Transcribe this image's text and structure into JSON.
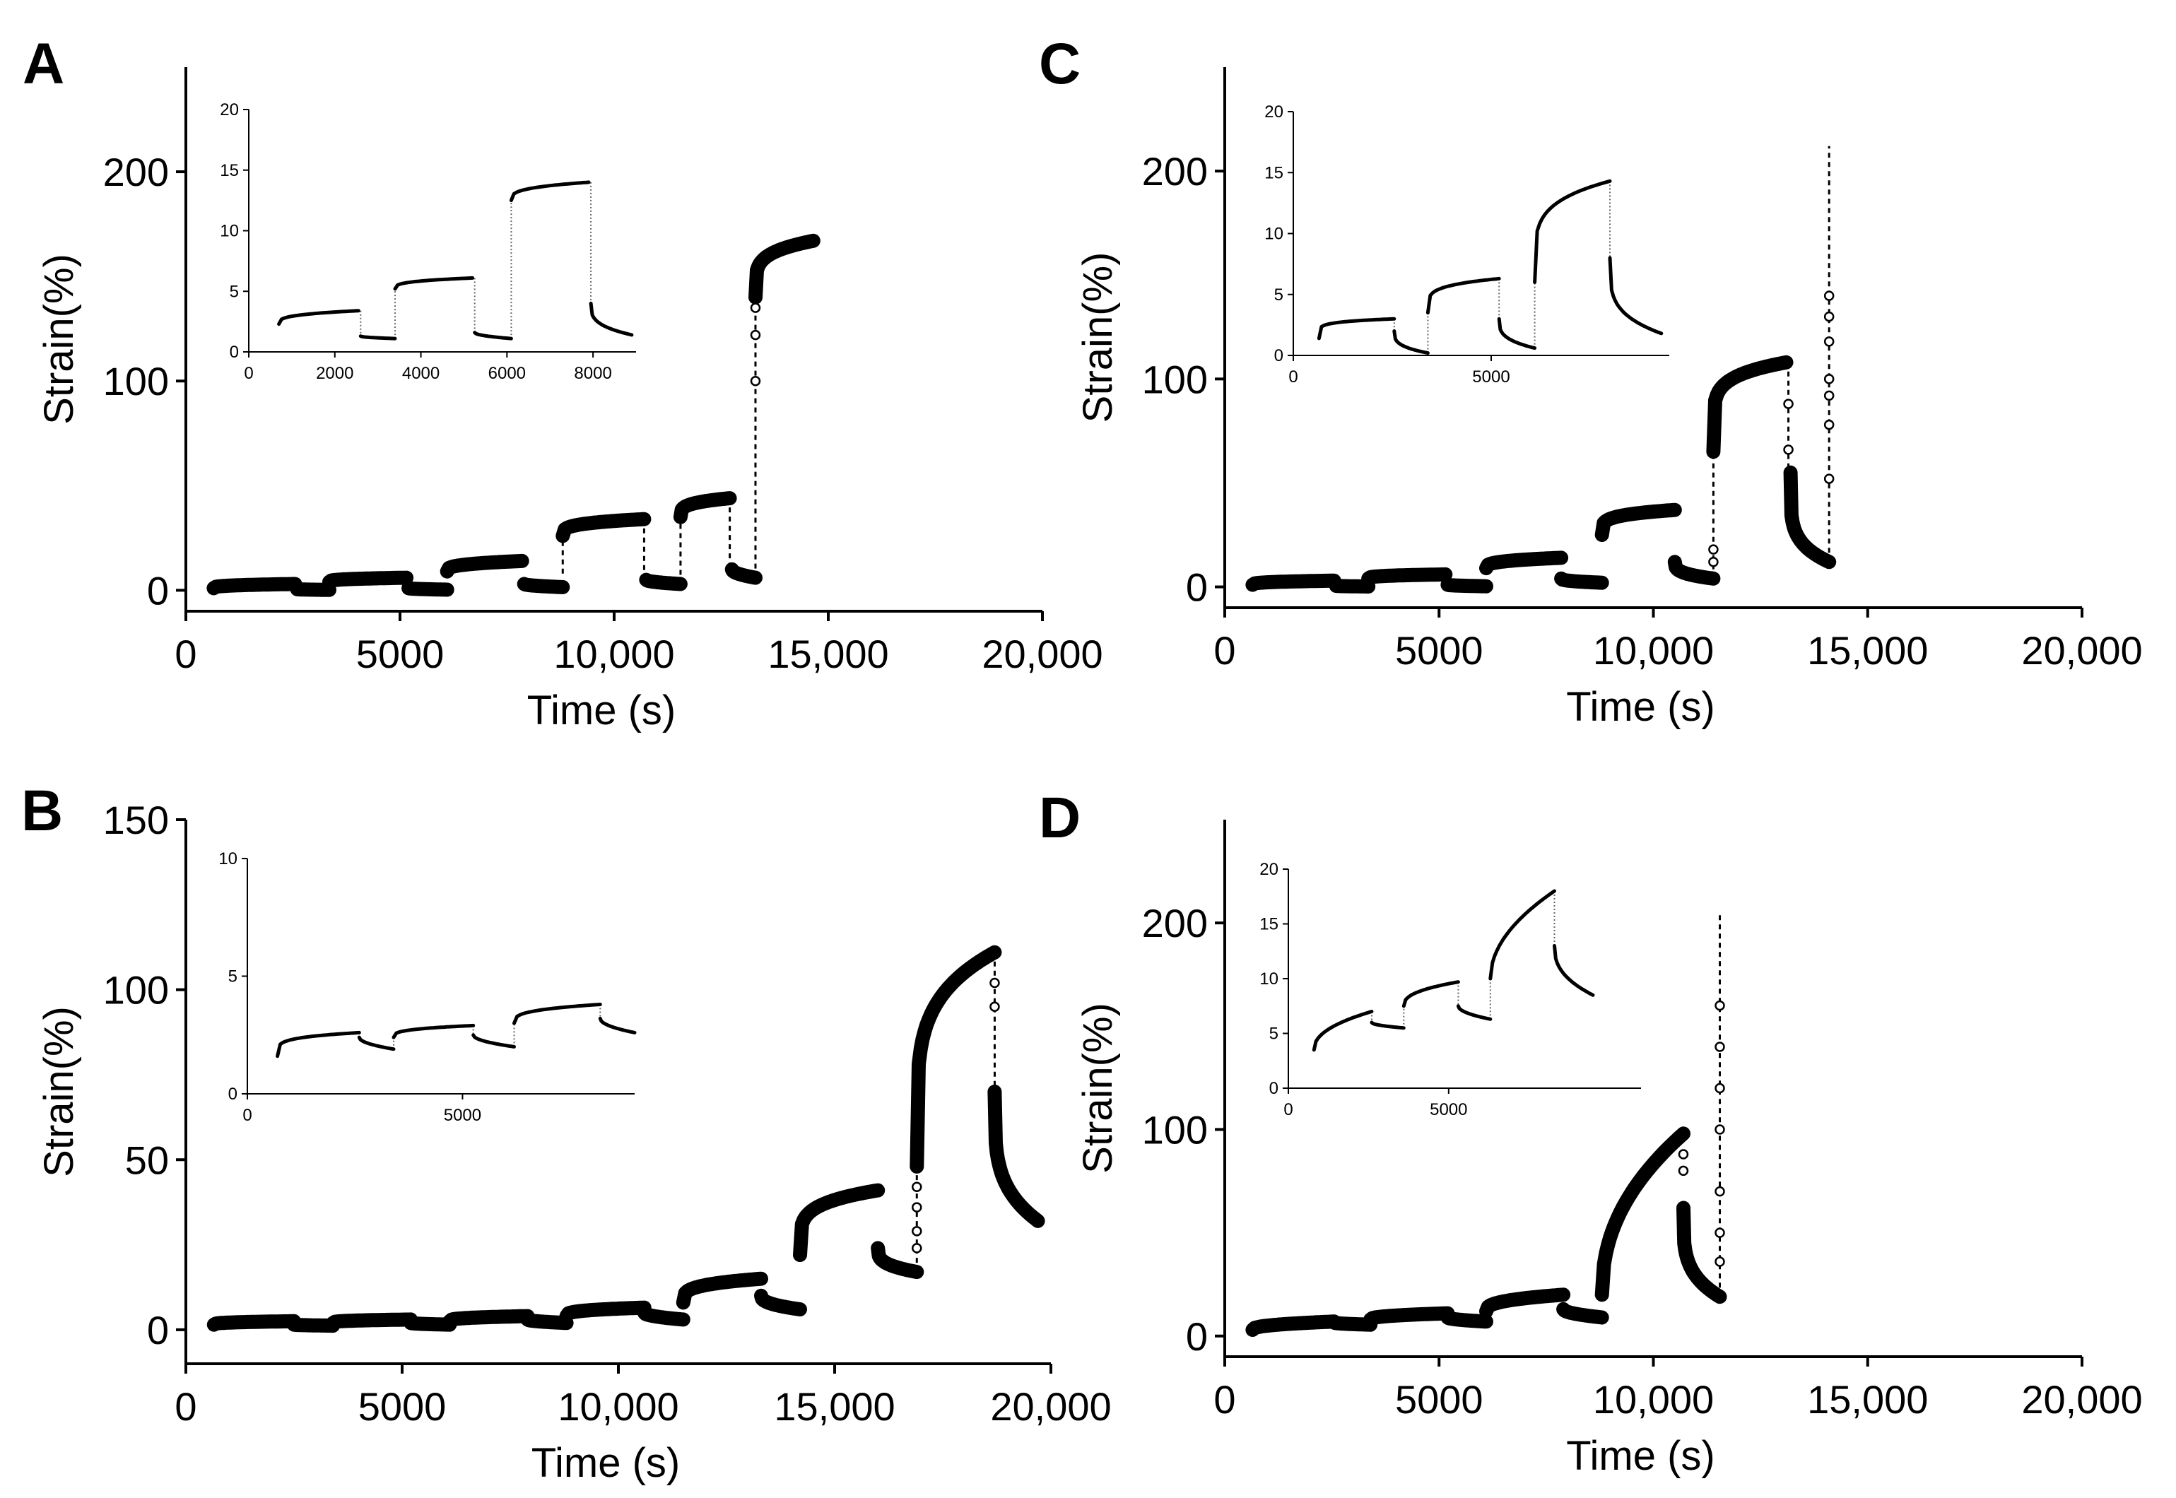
{
  "figure": {
    "background": "#ffffff",
    "ink": "#000000"
  },
  "chart_data": [
    {
      "panel": "A",
      "type": "line",
      "xlabel": "Time (s)",
      "ylabel": "Strain(%)",
      "xlim": [
        0,
        20000
      ],
      "ylim": [
        -10,
        250
      ],
      "xticks": [
        0,
        5000,
        10000,
        15000,
        20000
      ],
      "xtick_labels": [
        "0",
        "5000",
        "10,000",
        "15,000",
        "20,000"
      ],
      "yticks": [
        0,
        100,
        200
      ],
      "ytick_labels": [
        "0",
        "100",
        "200"
      ],
      "segments": [
        {
          "t0": 650,
          "t1": 2550,
          "y0": 1,
          "y1": 3,
          "k": 0.3
        },
        {
          "t0": 2600,
          "t1": 3350,
          "y0": 0.5,
          "y1": 0.2,
          "k": 0.5
        },
        {
          "t0": 3350,
          "t1": 5150,
          "y0": 4,
          "y1": 6,
          "k": 0.3
        },
        {
          "t0": 5200,
          "t1": 6100,
          "y0": 1,
          "y1": 0.3,
          "k": 0.5
        },
        {
          "t0": 6100,
          "t1": 7850,
          "y0": 9,
          "y1": 14,
          "k": 0.3
        },
        {
          "t0": 7900,
          "t1": 8800,
          "y0": 3,
          "y1": 1.5,
          "k": 0.5
        },
        {
          "t0": 8800,
          "t1": 10700,
          "y0": 26,
          "y1": 34,
          "k": 0.25
        },
        {
          "t0": 10750,
          "t1": 11550,
          "y0": 5,
          "y1": 3,
          "k": 0.5
        },
        {
          "t0": 11550,
          "t1": 12700,
          "y0": 35,
          "y1": 44,
          "k": 0.25
        },
        {
          "t0": 12750,
          "t1": 13300,
          "y0": 10,
          "y1": 6,
          "k": 0.5
        },
        {
          "t0": 13300,
          "t1": 14650,
          "y0": 140,
          "y1": 167,
          "k": 0.2
        }
      ],
      "jumps": [
        [
          8800,
          8,
          26
        ],
        [
          10700,
          34,
          5
        ],
        [
          11550,
          3,
          35
        ],
        [
          12700,
          44,
          10
        ],
        [
          13300,
          6,
          140
        ]
      ],
      "open_markers": [
        [
          13300,
          100
        ],
        [
          13300,
          122
        ],
        [
          13300,
          135
        ]
      ],
      "inset": {
        "xlim": [
          0,
          9000
        ],
        "ylim": [
          0,
          20
        ],
        "xticks": [
          0,
          2000,
          4000,
          6000,
          8000
        ],
        "xtick_labels": [
          "0",
          "2000",
          "4000",
          "6000",
          "8000"
        ],
        "yticks": [
          0,
          5,
          10,
          15,
          20
        ],
        "ytick_labels": [
          "0",
          "5",
          "10",
          "15",
          "20"
        ],
        "segments": [
          {
            "t0": 700,
            "t1": 2550,
            "y0": 2.3,
            "y1": 3.4,
            "k": 0.3
          },
          {
            "t0": 2600,
            "t1": 3400,
            "y0": 1.3,
            "y1": 1.1,
            "k": 0.5
          },
          {
            "t0": 3400,
            "t1": 5200,
            "y0": 5.2,
            "y1": 6.1,
            "k": 0.3
          },
          {
            "t0": 5250,
            "t1": 6100,
            "y0": 1.6,
            "y1": 1.1,
            "k": 0.5
          },
          {
            "t0": 6100,
            "t1": 7900,
            "y0": 12.5,
            "y1": 14,
            "k": 0.3
          },
          {
            "t0": 7950,
            "t1": 8900,
            "y0": 4,
            "y1": 1.4,
            "k": 0.3
          }
        ]
      }
    },
    {
      "panel": "B",
      "type": "line",
      "xlabel": "Time (s)",
      "ylabel": "Strain(%)",
      "xlim": [
        0,
        20000
      ],
      "ylim": [
        -10,
        150
      ],
      "xticks": [
        0,
        5000,
        10000,
        15000,
        20000
      ],
      "xtick_labels": [
        "0",
        "5000",
        "10,000",
        "15,000",
        "20,000"
      ],
      "yticks": [
        0,
        50,
        100,
        150
      ],
      "ytick_labels": [
        "0",
        "50",
        "100",
        "150"
      ],
      "segments": [
        {
          "t0": 650,
          "t1": 2500,
          "y0": 1.5,
          "y1": 2.5,
          "k": 0.3
        },
        {
          "t0": 2500,
          "t1": 3400,
          "y0": 1.5,
          "y1": 1.2,
          "k": 0.5
        },
        {
          "t0": 3400,
          "t1": 5200,
          "y0": 2,
          "y1": 3,
          "k": 0.3
        },
        {
          "t0": 5200,
          "t1": 6100,
          "y0": 2,
          "y1": 1.5,
          "k": 0.5
        },
        {
          "t0": 6100,
          "t1": 7900,
          "y0": 2.5,
          "y1": 4,
          "k": 0.3
        },
        {
          "t0": 7900,
          "t1": 8800,
          "y0": 3,
          "y1": 2,
          "k": 0.5
        },
        {
          "t0": 8800,
          "t1": 10600,
          "y0": 4,
          "y1": 6.5,
          "k": 0.3
        },
        {
          "t0": 10600,
          "t1": 11500,
          "y0": 5,
          "y1": 3,
          "k": 0.5
        },
        {
          "t0": 11500,
          "t1": 13300,
          "y0": 8,
          "y1": 15,
          "k": 0.25
        },
        {
          "t0": 13300,
          "t1": 14200,
          "y0": 10,
          "y1": 6,
          "k": 0.4
        },
        {
          "t0": 14200,
          "t1": 16000,
          "y0": 22,
          "y1": 41,
          "k": 0.2
        },
        {
          "t0": 16000,
          "t1": 16900,
          "y0": 24,
          "y1": 17,
          "k": 0.3
        },
        {
          "t0": 16900,
          "t1": 18700,
          "y0": 48,
          "y1": 111,
          "k": 0.2
        },
        {
          "t0": 18700,
          "t1": 19700,
          "y0": 70,
          "y1": 32,
          "k": 0.25
        }
      ],
      "jumps": [
        [
          16900,
          17,
          48
        ],
        [
          18700,
          111,
          70
        ]
      ],
      "open_markers": [
        [
          16900,
          24
        ],
        [
          16900,
          29
        ],
        [
          16900,
          36
        ],
        [
          16900,
          42
        ],
        [
          18700,
          102
        ],
        [
          18700,
          95
        ]
      ],
      "inset": {
        "xlim": [
          0,
          9000
        ],
        "ylim": [
          0,
          10
        ],
        "xticks": [
          0,
          5000
        ],
        "xtick_labels": [
          "0",
          "5000"
        ],
        "yticks": [
          0,
          5,
          10
        ],
        "ytick_labels": [
          "0",
          "5",
          "10"
        ],
        "segments": [
          {
            "t0": 700,
            "t1": 2600,
            "y0": 1.6,
            "y1": 2.6,
            "k": 0.2
          },
          {
            "t0": 2600,
            "t1": 3400,
            "y0": 2.4,
            "y1": 1.9,
            "k": 0.5
          },
          {
            "t0": 3400,
            "t1": 5250,
            "y0": 2.4,
            "y1": 2.9,
            "k": 0.3
          },
          {
            "t0": 5250,
            "t1": 6200,
            "y0": 2.5,
            "y1": 2,
            "k": 0.5
          },
          {
            "t0": 6200,
            "t1": 8200,
            "y0": 3,
            "y1": 3.8,
            "k": 0.3
          },
          {
            "t0": 8200,
            "t1": 9000,
            "y0": 3.2,
            "y1": 2.6,
            "k": 0.5
          }
        ]
      }
    },
    {
      "panel": "C",
      "type": "line",
      "xlabel": "Time (s)",
      "ylabel": "Strain(%)",
      "xlim": [
        0,
        20000
      ],
      "ylim": [
        -10,
        250
      ],
      "xticks": [
        0,
        5000,
        10000,
        15000,
        20000
      ],
      "xtick_labels": [
        "0",
        "5000",
        "10,000",
        "15,000",
        "20,000"
      ],
      "yticks": [
        0,
        100,
        200
      ],
      "ytick_labels": [
        "0",
        "100",
        "200"
      ],
      "segments": [
        {
          "t0": 650,
          "t1": 2550,
          "y0": 1,
          "y1": 3,
          "k": 0.3
        },
        {
          "t0": 2600,
          "t1": 3350,
          "y0": 0.5,
          "y1": 0.2,
          "k": 0.5
        },
        {
          "t0": 3350,
          "t1": 5150,
          "y0": 4,
          "y1": 6,
          "k": 0.3
        },
        {
          "t0": 5200,
          "t1": 6100,
          "y0": 1,
          "y1": 0.3,
          "k": 0.5
        },
        {
          "t0": 6100,
          "t1": 7850,
          "y0": 9,
          "y1": 14,
          "k": 0.3
        },
        {
          "t0": 7850,
          "t1": 8800,
          "y0": 4,
          "y1": 2,
          "k": 0.4
        },
        {
          "t0": 8800,
          "t1": 10500,
          "y0": 25,
          "y1": 37,
          "k": 0.2
        },
        {
          "t0": 10500,
          "t1": 11400,
          "y0": 12,
          "y1": 4,
          "k": 0.3
        },
        {
          "t0": 11400,
          "t1": 13100,
          "y0": 65,
          "y1": 108,
          "k": 0.15
        },
        {
          "t0": 13200,
          "t1": 14100,
          "y0": 55,
          "y1": 12,
          "k": 0.2
        }
      ],
      "jumps": [
        [
          11400,
          4,
          65
        ],
        [
          13150,
          108,
          55
        ],
        [
          14100,
          12,
          212
        ]
      ],
      "open_markers": [
        [
          11400,
          12
        ],
        [
          11400,
          18
        ],
        [
          13150,
          88
        ],
        [
          13150,
          66
        ],
        [
          14100,
          52
        ],
        [
          14100,
          78
        ],
        [
          14100,
          92
        ],
        [
          14100,
          100
        ],
        [
          14100,
          118
        ],
        [
          14100,
          130
        ],
        [
          14100,
          140
        ]
      ],
      "inset": {
        "xlim": [
          0,
          9500
        ],
        "ylim": [
          0,
          20
        ],
        "xticks": [
          0,
          5000
        ],
        "xtick_labels": [
          "0",
          "5000"
        ],
        "yticks": [
          0,
          5,
          10,
          15,
          20
        ],
        "ytick_labels": [
          "0",
          "5",
          "10",
          "15",
          "20"
        ],
        "segments": [
          {
            "t0": 650,
            "t1": 2550,
            "y0": 1.4,
            "y1": 3,
            "k": 0.15
          },
          {
            "t0": 2550,
            "t1": 3400,
            "y0": 2,
            "y1": 0.2,
            "k": 0.3
          },
          {
            "t0": 3400,
            "t1": 5200,
            "y0": 3.5,
            "y1": 6.3,
            "k": 0.2
          },
          {
            "t0": 5200,
            "t1": 6100,
            "y0": 3,
            "y1": 0.6,
            "k": 0.3
          },
          {
            "t0": 6100,
            "t1": 8000,
            "y0": 6,
            "y1": 14.3,
            "k": 0.2
          },
          {
            "t0": 8000,
            "t1": 9300,
            "y0": 8,
            "y1": 1.8,
            "k": 0.25
          }
        ]
      }
    },
    {
      "panel": "D",
      "type": "line",
      "xlabel": "Time (s)",
      "ylabel": "Strain(%)",
      "xlim": [
        0,
        20000
      ],
      "ylim": [
        -10,
        250
      ],
      "xticks": [
        0,
        5000,
        10000,
        15000,
        20000
      ],
      "xtick_labels": [
        "0",
        "5000",
        "10,000",
        "15,000",
        "20,000"
      ],
      "yticks": [
        0,
        100,
        200
      ],
      "ytick_labels": [
        "0",
        "100",
        "200"
      ],
      "segments": [
        {
          "t0": 650,
          "t1": 2550,
          "y0": 3,
          "y1": 7,
          "k": 0.4
        },
        {
          "t0": 2550,
          "t1": 3400,
          "y0": 6.5,
          "y1": 5.5,
          "k": 0.5
        },
        {
          "t0": 3400,
          "t1": 5200,
          "y0": 8,
          "y1": 11,
          "k": 0.4
        },
        {
          "t0": 5200,
          "t1": 6100,
          "y0": 9,
          "y1": 7,
          "k": 0.5
        },
        {
          "t0": 6100,
          "t1": 7900,
          "y0": 12,
          "y1": 20,
          "k": 0.35
        },
        {
          "t0": 7900,
          "t1": 8800,
          "y0": 13,
          "y1": 9,
          "k": 0.5
        },
        {
          "t0": 8800,
          "t1": 10700,
          "y0": 20,
          "y1": 98,
          "k": 0.45
        },
        {
          "t0": 10700,
          "t1": 11550,
          "y0": 62,
          "y1": 19,
          "k": 0.25
        }
      ],
      "jumps": [
        [
          11550,
          19,
          205
        ]
      ],
      "open_markers": [
        [
          10700,
          88
        ],
        [
          10700,
          80
        ],
        [
          11550,
          36
        ],
        [
          11550,
          50
        ],
        [
          11550,
          70
        ],
        [
          11550,
          100
        ],
        [
          11550,
          120
        ],
        [
          11550,
          140
        ],
        [
          11550,
          160
        ]
      ],
      "inset": {
        "xlim": [
          0,
          11000
        ],
        "ylim": [
          0,
          20
        ],
        "xticks": [
          0,
          5000
        ],
        "xtick_labels": [
          "0",
          "5000"
        ],
        "yticks": [
          0,
          5,
          10,
          15,
          20
        ],
        "ytick_labels": [
          "0",
          "5",
          "10",
          "15",
          "20"
        ],
        "segments": [
          {
            "t0": 800,
            "t1": 2600,
            "y0": 3.5,
            "y1": 7,
            "k": 0.45
          },
          {
            "t0": 2600,
            "t1": 3600,
            "y0": 6,
            "y1": 5.5,
            "k": 0.5
          },
          {
            "t0": 3600,
            "t1": 5300,
            "y0": 7.5,
            "y1": 9.7,
            "k": 0.4
          },
          {
            "t0": 5300,
            "t1": 6300,
            "y0": 7.5,
            "y1": 6.3,
            "k": 0.5
          },
          {
            "t0": 6300,
            "t1": 8300,
            "y0": 10,
            "y1": 18,
            "k": 0.5
          },
          {
            "t0": 8300,
            "t1": 9500,
            "y0": 13,
            "y1": 8.5,
            "k": 0.4
          }
        ]
      }
    }
  ]
}
